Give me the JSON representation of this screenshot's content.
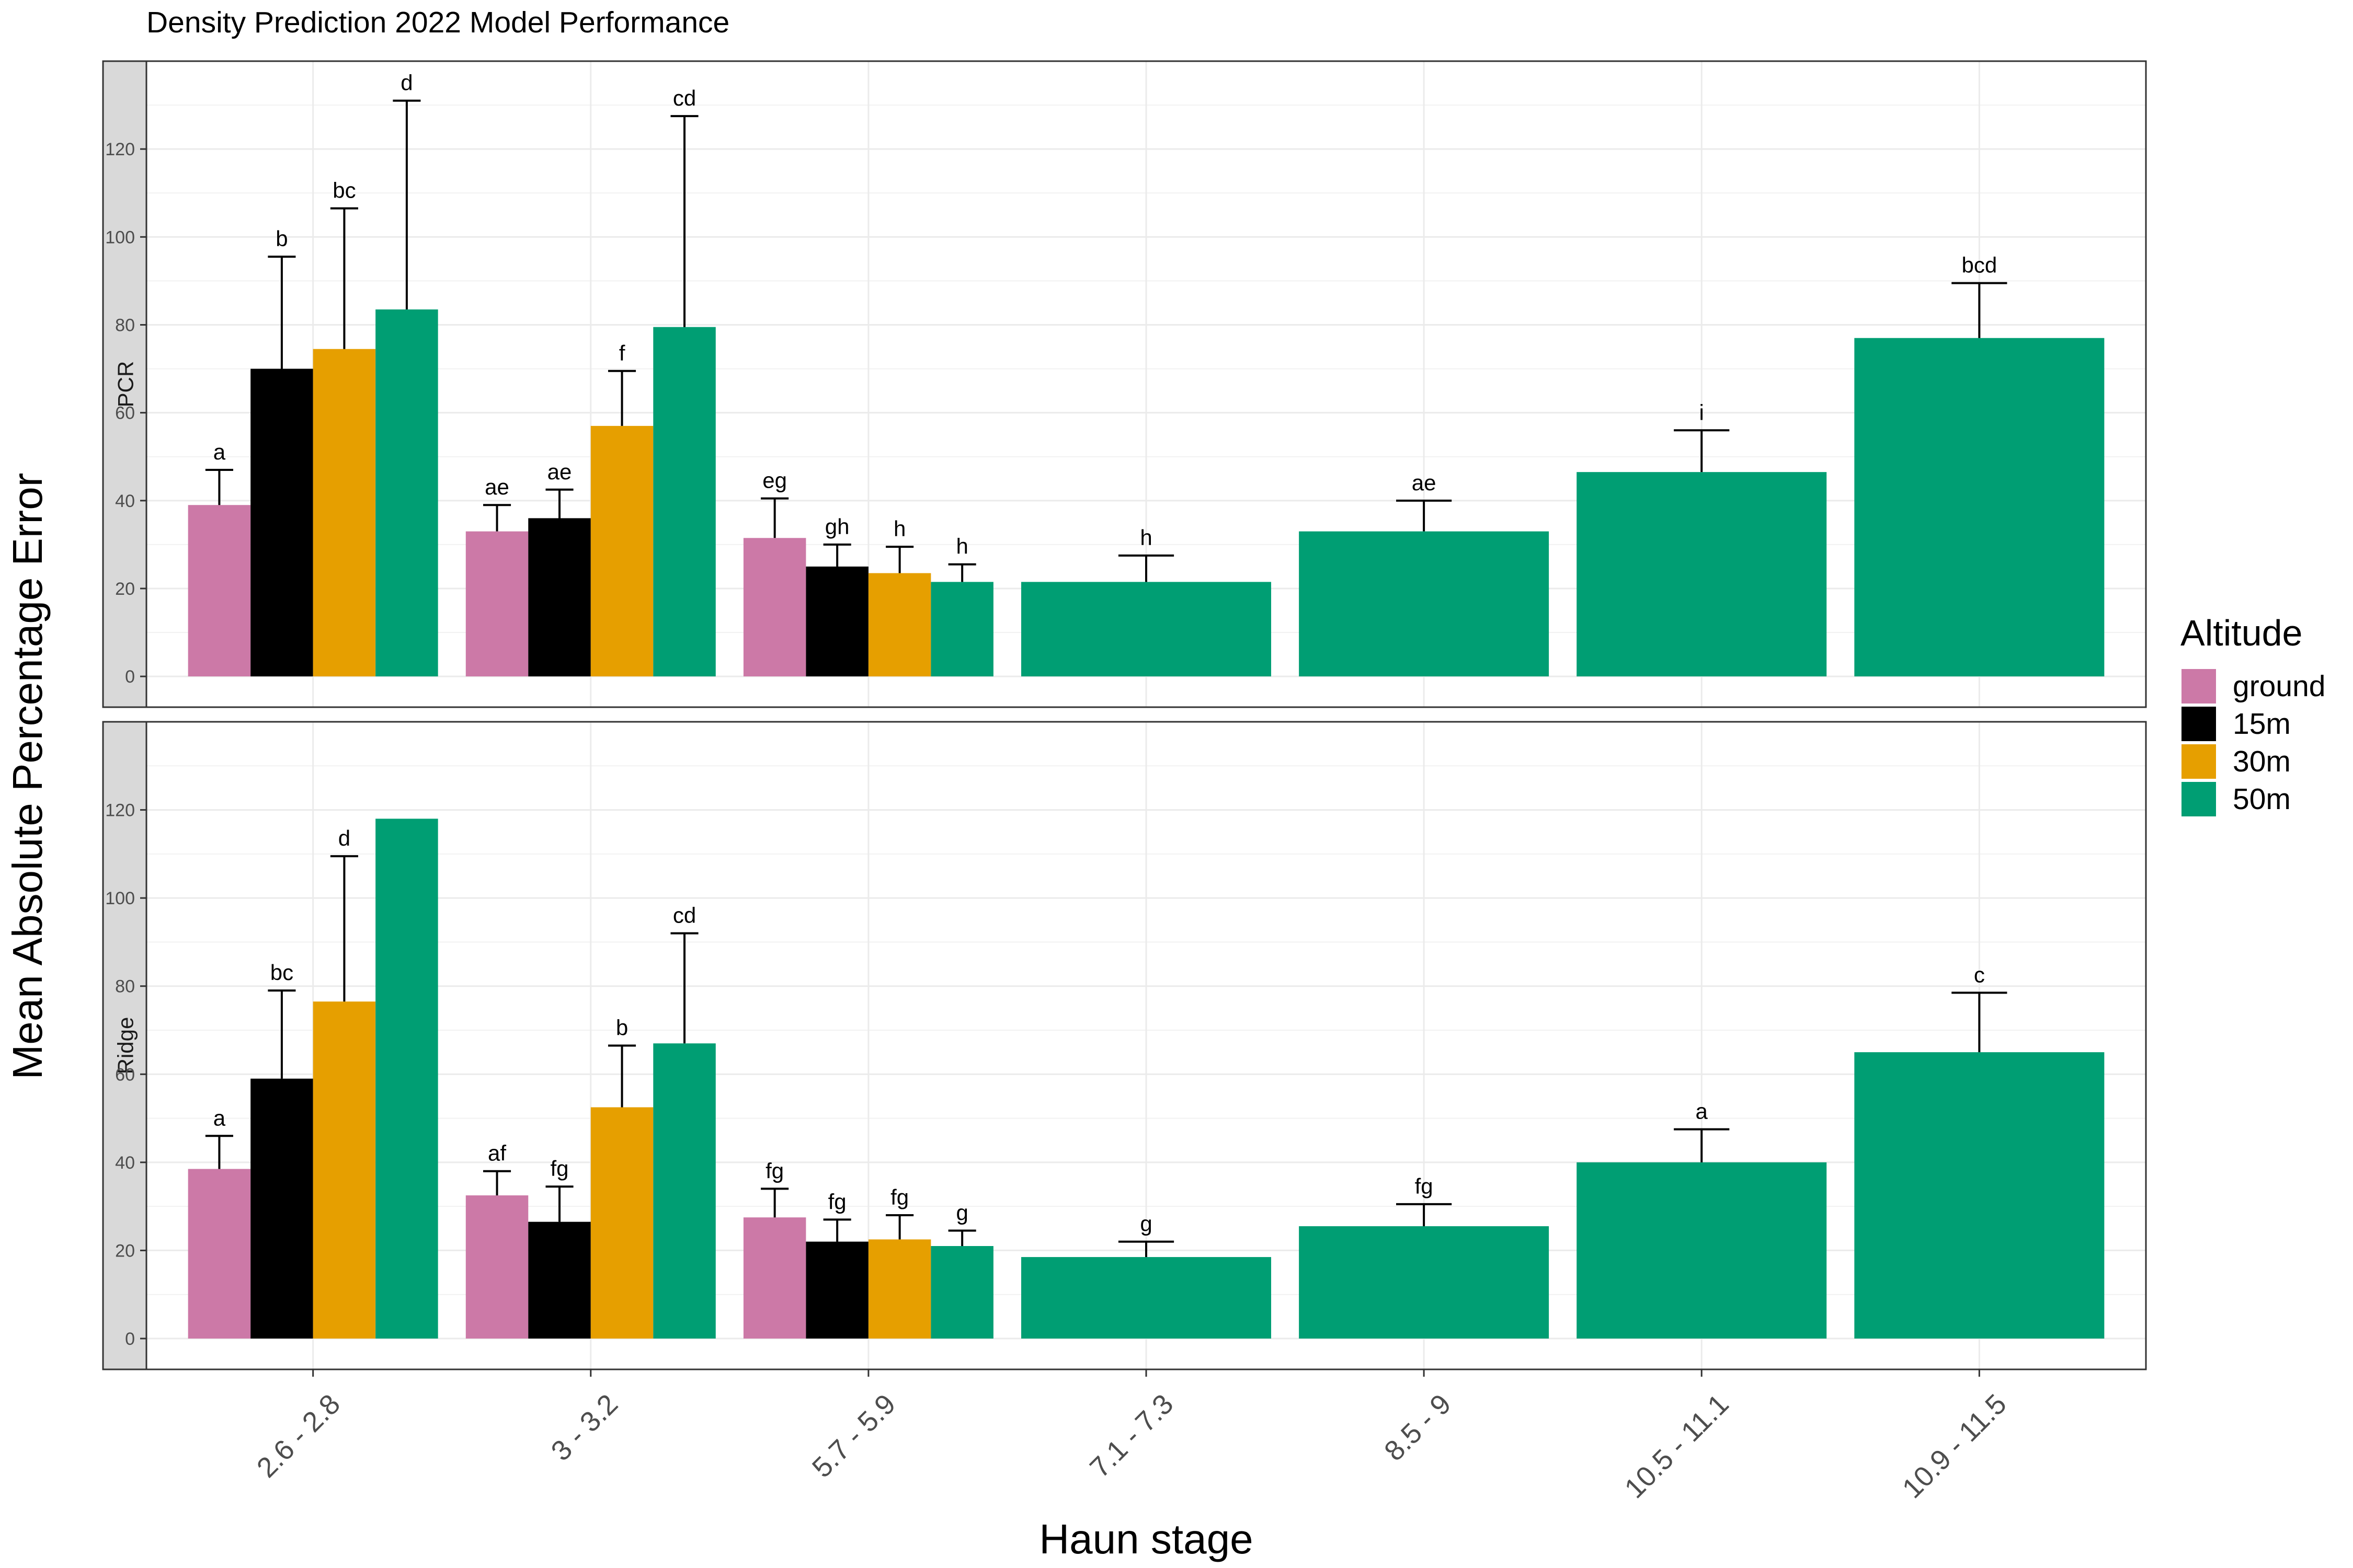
{
  "chart_data": {
    "type": "bar",
    "title": "Density Prediction 2022 Model Performance",
    "xlabel": "Haun stage",
    "ylabel": "Mean Absolute Percentage Error",
    "ylim": [
      -7,
      140
    ],
    "yticks": [
      0,
      20,
      40,
      60,
      80,
      100,
      120
    ],
    "grid": true,
    "categories": [
      "2.6 - 2.8",
      "3 - 3.2",
      "5.7 - 5.9",
      "7.1 - 7.3",
      "8.5 - 9",
      "10.5 - 11.1",
      "10.9 - 11.5"
    ],
    "legend": {
      "title": "Altitude",
      "position": "right",
      "entries": [
        {
          "name": "ground",
          "color": "#CC79A7"
        },
        {
          "name": "15m",
          "color": "#000000"
        },
        {
          "name": "30m",
          "color": "#E69F00"
        },
        {
          "name": "50m",
          "color": "#009E73"
        }
      ]
    },
    "panels": [
      {
        "label": "PCR",
        "groups": [
          {
            "category": "2.6 - 2.8",
            "bars": [
              {
                "altitude": "ground",
                "value": 39,
                "error": 8,
                "letter": "a"
              },
              {
                "altitude": "15m",
                "value": 70,
                "error": 25.5,
                "letter": "b"
              },
              {
                "altitude": "30m",
                "value": 74.5,
                "error": 32,
                "letter": "bc"
              },
              {
                "altitude": "50m",
                "value": 83.5,
                "error": 47.5,
                "letter": "d"
              }
            ]
          },
          {
            "category": "3 - 3.2",
            "bars": [
              {
                "altitude": "ground",
                "value": 33,
                "error": 6,
                "letter": "ae"
              },
              {
                "altitude": "15m",
                "value": 36,
                "error": 6.5,
                "letter": "ae"
              },
              {
                "altitude": "30m",
                "value": 57,
                "error": 12.5,
                "letter": "f"
              },
              {
                "altitude": "50m",
                "value": 79.5,
                "error": 48,
                "letter": "cd"
              }
            ]
          },
          {
            "category": "5.7 - 5.9",
            "bars": [
              {
                "altitude": "ground",
                "value": 31.5,
                "error": 9,
                "letter": "eg"
              },
              {
                "altitude": "15m",
                "value": 25,
                "error": 5,
                "letter": "gh"
              },
              {
                "altitude": "30m",
                "value": 23.5,
                "error": 6,
                "letter": "h"
              },
              {
                "altitude": "50m",
                "value": 21.5,
                "error": 4,
                "letter": "h"
              }
            ]
          },
          {
            "category": "7.1 - 7.3",
            "bars": [
              {
                "altitude": "50m",
                "value": 21.5,
                "error": 6,
                "letter": "h"
              }
            ]
          },
          {
            "category": "8.5 - 9",
            "bars": [
              {
                "altitude": "50m",
                "value": 33,
                "error": 7,
                "letter": "ae"
              }
            ]
          },
          {
            "category": "10.5 - 11.1",
            "bars": [
              {
                "altitude": "50m",
                "value": 46.5,
                "error": 9.5,
                "letter": "i"
              }
            ]
          },
          {
            "category": "10.9 - 11.5",
            "bars": [
              {
                "altitude": "50m",
                "value": 77,
                "error": 12.5,
                "letter": "bcd"
              }
            ]
          }
        ]
      },
      {
        "label": "Ridge",
        "groups": [
          {
            "category": "2.6 - 2.8",
            "bars": [
              {
                "altitude": "ground",
                "value": 38.5,
                "error": 7.5,
                "letter": "a"
              },
              {
                "altitude": "15m",
                "value": 59,
                "error": 20,
                "letter": "bc"
              },
              {
                "altitude": "30m",
                "value": 76.5,
                "error": 33,
                "letter": "d"
              },
              {
                "altitude": "50m",
                "value": 118,
                "error": null,
                "letter": ""
              }
            ]
          },
          {
            "category": "3 - 3.2",
            "bars": [
              {
                "altitude": "ground",
                "value": 32.5,
                "error": 5.5,
                "letter": "af"
              },
              {
                "altitude": "15m",
                "value": 26.5,
                "error": 8,
                "letter": "fg"
              },
              {
                "altitude": "30m",
                "value": 52.5,
                "error": 14,
                "letter": "b"
              },
              {
                "altitude": "50m",
                "value": 67,
                "error": 25,
                "letter": "cd"
              }
            ]
          },
          {
            "category": "5.7 - 5.9",
            "bars": [
              {
                "altitude": "ground",
                "value": 27.5,
                "error": 6.5,
                "letter": "fg"
              },
              {
                "altitude": "15m",
                "value": 22,
                "error": 5,
                "letter": "fg"
              },
              {
                "altitude": "30m",
                "value": 22.5,
                "error": 5.5,
                "letter": "fg"
              },
              {
                "altitude": "50m",
                "value": 21,
                "error": 3.5,
                "letter": "g"
              }
            ]
          },
          {
            "category": "7.1 - 7.3",
            "bars": [
              {
                "altitude": "50m",
                "value": 18.5,
                "error": 3.5,
                "letter": "g"
              }
            ]
          },
          {
            "category": "8.5 - 9",
            "bars": [
              {
                "altitude": "50m",
                "value": 25.5,
                "error": 5,
                "letter": "fg"
              }
            ]
          },
          {
            "category": "10.5 - 11.1",
            "bars": [
              {
                "altitude": "50m",
                "value": 40,
                "error": 7.5,
                "letter": "a"
              }
            ]
          },
          {
            "category": "10.9 - 11.5",
            "bars": [
              {
                "altitude": "50m",
                "value": 65,
                "error": 13.5,
                "letter": "c"
              }
            ]
          }
        ]
      }
    ]
  }
}
